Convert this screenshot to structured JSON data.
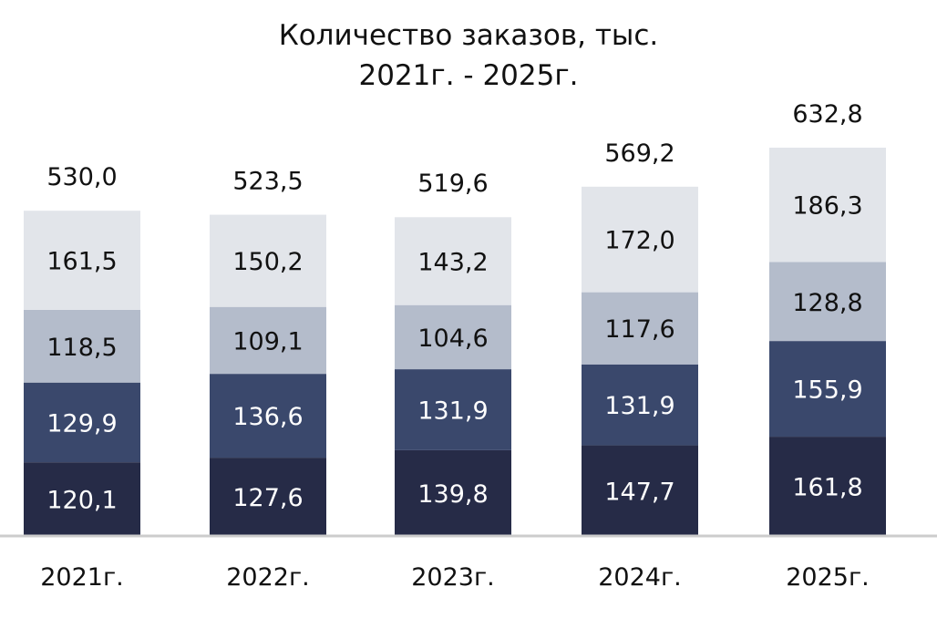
{
  "chart_data": {
    "type": "bar",
    "stacked": true,
    "title": "Количество заказов, тыс.",
    "subtitle": "2021г. - 2025г.",
    "categories": [
      "2021г.",
      "2022г.",
      "2023г.",
      "2024г.",
      "2025г."
    ],
    "series": [
      {
        "values": [
          120.1,
          127.6,
          139.8,
          147.7,
          161.8
        ],
        "labels": [
          "120,1",
          "127,6",
          "139,8",
          "147,7",
          "161,8"
        ],
        "color": "#262b47",
        "label_color": "#ffffff"
      },
      {
        "values": [
          129.9,
          136.6,
          131.9,
          131.9,
          155.9
        ],
        "labels": [
          "129,9",
          "136,6",
          "131,9",
          "131,9",
          "155,9"
        ],
        "color": "#3a486c",
        "label_color": "#ffffff"
      },
      {
        "values": [
          118.5,
          109.1,
          104.6,
          117.6,
          128.8
        ],
        "labels": [
          "118,5",
          "109,1",
          "104,6",
          "117,6",
          "128,8"
        ],
        "color": "#b4bccb",
        "label_color": "#111111"
      },
      {
        "values": [
          161.5,
          150.2,
          143.2,
          172.0,
          186.3
        ],
        "labels": [
          "161,5",
          "150,2",
          "143,2",
          "172,0",
          "186,3"
        ],
        "color": "#e2e5ea",
        "label_color": "#111111"
      }
    ],
    "totals": [
      530.0,
      523.5,
      519.6,
      569.2,
      632.8
    ],
    "total_labels": [
      "530,0",
      "523,5",
      "519,6",
      "569,2",
      "632,8"
    ],
    "ylim": [
      0,
      632.8
    ],
    "grid": false,
    "legend": "none",
    "axis_color": "#cccccc"
  }
}
